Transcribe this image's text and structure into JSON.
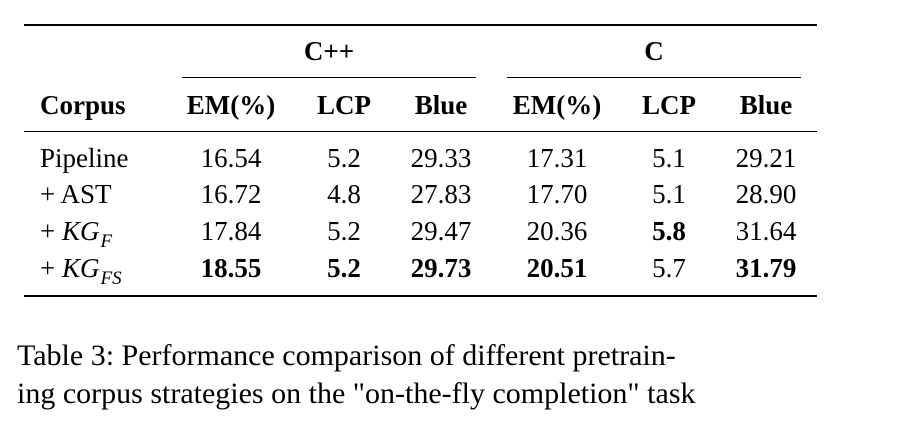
{
  "table": {
    "group_headers": [
      "C++",
      "C"
    ],
    "columns": [
      "Corpus",
      "EM(%)",
      "LCP",
      "Blue",
      "EM(%)",
      "LCP",
      "Blue"
    ],
    "rows": [
      {
        "corpus_prefix": "Pipeline",
        "corpus_main": "",
        "corpus_sub": "",
        "values": [
          "16.54",
          "5.2",
          "29.33",
          "17.31",
          "5.1",
          "29.21"
        ],
        "bold": [
          false,
          false,
          false,
          false,
          false,
          false
        ]
      },
      {
        "corpus_prefix": "+ AST",
        "corpus_main": "",
        "corpus_sub": "",
        "values": [
          "16.72",
          "4.8",
          "27.83",
          "17.70",
          "5.1",
          "28.90"
        ],
        "bold": [
          false,
          false,
          false,
          false,
          false,
          false
        ]
      },
      {
        "corpus_prefix": "+ ",
        "corpus_main": "KG",
        "corpus_sub": "F",
        "values": [
          "17.84",
          "5.2",
          "29.47",
          "20.36",
          "5.8",
          "31.64"
        ],
        "bold": [
          false,
          false,
          false,
          false,
          true,
          false
        ]
      },
      {
        "corpus_prefix": "+ ",
        "corpus_main": "KG",
        "corpus_sub": "FS",
        "values": [
          "18.55",
          "5.2",
          "29.73",
          "20.51",
          "5.7",
          "31.79"
        ],
        "bold": [
          true,
          true,
          true,
          true,
          false,
          true
        ]
      }
    ]
  },
  "caption": {
    "line1": "Table 3: Performance comparison of different pretrain-",
    "line2": "ing corpus strategies on the \"on-the-fly completion\" task"
  }
}
